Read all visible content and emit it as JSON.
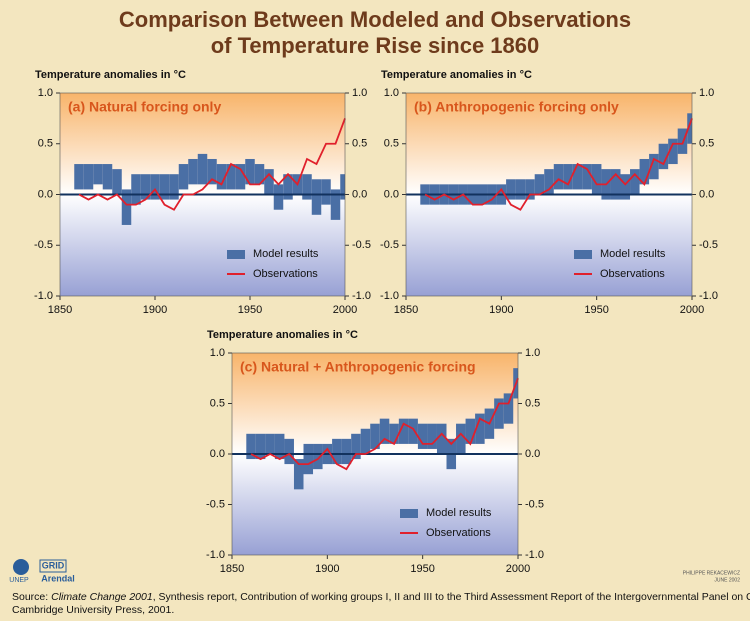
{
  "page_title": [
    "Comparison Between Modeled and Observations",
    "of Temperature Rise since 1860"
  ],
  "chart_data": [
    {
      "type": "line",
      "title": "(a) Natural forcing only",
      "ylabel": "Temperature anomalies in °C",
      "x": [
        1860,
        1865,
        1870,
        1875,
        1880,
        1885,
        1890,
        1895,
        1900,
        1905,
        1910,
        1915,
        1920,
        1925,
        1930,
        1935,
        1940,
        1945,
        1950,
        1955,
        1960,
        1965,
        1970,
        1975,
        1980,
        1985,
        1990,
        1995,
        2000
      ],
      "xlim": [
        1850,
        2000
      ],
      "xticks": [
        1850,
        1900,
        1950,
        2000
      ],
      "ylim": [
        -1,
        1
      ],
      "yticks": [
        {
          "value": 1,
          "label": "1.0"
        },
        0.5,
        {
          "value": 0,
          "label": "0.0"
        },
        -0.5,
        {
          "value": -1,
          "label": "-1.0"
        }
      ],
      "legend": "lower right",
      "series": [
        {
          "name": "Model results",
          "color": "#4a6fa5",
          "low": [
            0.05,
            0.05,
            0.1,
            0.05,
            0.0,
            -0.3,
            -0.1,
            -0.05,
            -0.05,
            -0.05,
            -0.05,
            0.05,
            0.1,
            0.1,
            0.1,
            0.05,
            0.05,
            0.05,
            0.1,
            0.1,
            0.0,
            -0.15,
            -0.05,
            0.0,
            -0.05,
            -0.2,
            -0.1,
            -0.25,
            -0.05
          ],
          "high": [
            0.3,
            0.3,
            0.3,
            0.3,
            0.25,
            0.05,
            0.2,
            0.2,
            0.2,
            0.2,
            0.2,
            0.3,
            0.35,
            0.4,
            0.35,
            0.3,
            0.3,
            0.3,
            0.35,
            0.3,
            0.25,
            0.1,
            0.2,
            0.2,
            0.2,
            0.15,
            0.15,
            0.05,
            0.2
          ]
        },
        {
          "name": "Observations",
          "color": "#e0202c",
          "values": [
            0.0,
            -0.05,
            0.0,
            -0.05,
            0.0,
            -0.1,
            -0.1,
            -0.05,
            0.05,
            -0.1,
            -0.15,
            0.0,
            0.0,
            0.05,
            0.15,
            0.1,
            0.3,
            0.25,
            0.1,
            0.1,
            0.2,
            0.1,
            0.2,
            0.1,
            0.35,
            0.3,
            0.5,
            0.5,
            0.75
          ]
        }
      ]
    },
    {
      "type": "line",
      "title": "(b) Anthropogenic forcing only",
      "ylabel": "Temperature anomalies in °C",
      "x": [
        1860,
        1865,
        1870,
        1875,
        1880,
        1885,
        1890,
        1895,
        1900,
        1905,
        1910,
        1915,
        1920,
        1925,
        1930,
        1935,
        1940,
        1945,
        1950,
        1955,
        1960,
        1965,
        1970,
        1975,
        1980,
        1985,
        1990,
        1995,
        2000
      ],
      "xlim": [
        1850,
        2000
      ],
      "xticks": [
        1850,
        1900,
        1950,
        2000
      ],
      "ylim": [
        -1,
        1
      ],
      "yticks": [
        {
          "value": 1,
          "label": "1.0"
        },
        0.5,
        {
          "value": 0,
          "label": "0.0"
        },
        -0.5,
        {
          "value": -1,
          "label": "-1.0"
        }
      ],
      "legend": "lower right",
      "series": [
        {
          "name": "Model results",
          "color": "#4a6fa5",
          "low": [
            -0.1,
            -0.1,
            -0.1,
            -0.1,
            -0.1,
            -0.1,
            -0.1,
            -0.1,
            -0.1,
            -0.05,
            -0.05,
            -0.05,
            0.0,
            0.0,
            0.05,
            0.05,
            0.05,
            0.05,
            0.0,
            -0.05,
            -0.05,
            -0.05,
            0.0,
            0.1,
            0.15,
            0.25,
            0.3,
            0.4,
            0.5
          ],
          "high": [
            0.1,
            0.1,
            0.1,
            0.1,
            0.1,
            0.1,
            0.1,
            0.1,
            0.1,
            0.15,
            0.15,
            0.15,
            0.2,
            0.25,
            0.3,
            0.3,
            0.3,
            0.3,
            0.3,
            0.25,
            0.25,
            0.2,
            0.25,
            0.35,
            0.4,
            0.5,
            0.55,
            0.65,
            0.8
          ]
        },
        {
          "name": "Observations",
          "color": "#e0202c",
          "values": [
            0.0,
            -0.05,
            0.0,
            -0.05,
            0.0,
            -0.1,
            -0.1,
            -0.05,
            0.05,
            -0.1,
            -0.15,
            0.0,
            0.0,
            0.05,
            0.15,
            0.1,
            0.3,
            0.25,
            0.1,
            0.1,
            0.2,
            0.1,
            0.2,
            0.1,
            0.35,
            0.3,
            0.5,
            0.5,
            0.75
          ]
        }
      ]
    },
    {
      "type": "line",
      "title": "(c) Natural + Anthropogenic forcing",
      "ylabel": "Temperature anomalies in °C",
      "x": [
        1860,
        1865,
        1870,
        1875,
        1880,
        1885,
        1890,
        1895,
        1900,
        1905,
        1910,
        1915,
        1920,
        1925,
        1930,
        1935,
        1940,
        1945,
        1950,
        1955,
        1960,
        1965,
        1970,
        1975,
        1980,
        1985,
        1990,
        1995,
        2000
      ],
      "xlim": [
        1850,
        2000
      ],
      "xticks": [
        1850,
        1900,
        1950,
        2000
      ],
      "ylim": [
        -1,
        1
      ],
      "yticks": [
        {
          "value": 1,
          "label": "1.0"
        },
        0.5,
        {
          "value": 0,
          "label": "0.0"
        },
        -0.5,
        {
          "value": -1,
          "label": "-1.0"
        }
      ],
      "legend": "lower right",
      "series": [
        {
          "name": "Model results",
          "color": "#4a6fa5",
          "low": [
            -0.05,
            -0.05,
            0.0,
            -0.05,
            -0.1,
            -0.35,
            -0.2,
            -0.15,
            -0.1,
            -0.1,
            -0.1,
            -0.05,
            0.0,
            0.05,
            0.1,
            0.1,
            0.1,
            0.1,
            0.05,
            0.05,
            0.0,
            -0.15,
            0.0,
            0.1,
            0.1,
            0.15,
            0.25,
            0.3,
            0.55
          ],
          "high": [
            0.2,
            0.2,
            0.2,
            0.2,
            0.15,
            -0.05,
            0.1,
            0.1,
            0.1,
            0.15,
            0.15,
            0.2,
            0.25,
            0.3,
            0.35,
            0.3,
            0.35,
            0.35,
            0.3,
            0.3,
            0.3,
            0.15,
            0.3,
            0.35,
            0.4,
            0.45,
            0.55,
            0.6,
            0.85
          ]
        },
        {
          "name": "Observations",
          "color": "#e0202c",
          "values": [
            0.0,
            -0.05,
            0.0,
            -0.05,
            0.0,
            -0.1,
            -0.1,
            -0.05,
            0.05,
            -0.1,
            -0.15,
            0.0,
            0.0,
            0.05,
            0.15,
            0.1,
            0.3,
            0.25,
            0.1,
            0.1,
            0.2,
            0.1,
            0.2,
            0.1,
            0.35,
            0.3,
            0.5,
            0.5,
            0.75
          ]
        }
      ]
    }
  ],
  "logos": {
    "unep": "UNEP",
    "grid": "GRID",
    "arendal": "Arendal"
  },
  "credit": [
    "PHILIPPE REKACEWICZ",
    "JUNE 2002"
  ],
  "source": {
    "prefix": "Source:",
    "title": "Climate Change 2001",
    "rest": ", Synthesis report, Contribution of working groups I, II and III to the Third Assessment Report of the Intergovernmental Panel on Climate Change,",
    "line2": "Cambridge University Press, 2001."
  }
}
